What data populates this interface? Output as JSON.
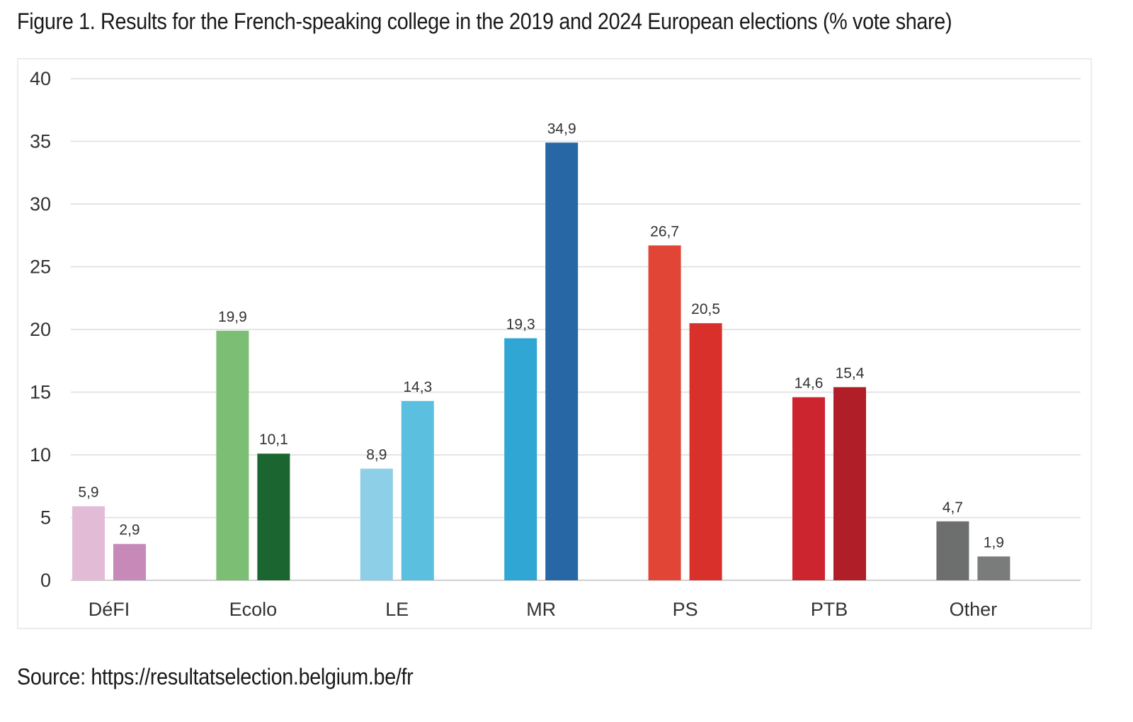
{
  "title": "Figure 1. Results for the French-speaking college in the 2019 and 2024 European elections (% vote share)",
  "source": "Source: https://resultatselection.belgium.be/fr",
  "chart_data": {
    "type": "bar",
    "categories": [
      "DéFI",
      "Ecolo",
      "LE",
      "MR",
      "PS",
      "PTB",
      "Other"
    ],
    "series": [
      {
        "values": [
          5.9,
          19.9,
          8.9,
          19.3,
          26.7,
          14.6,
          4.7
        ],
        "value_labels": [
          "5,9",
          "19,9",
          "8,9",
          "19,3",
          "26,7",
          "14,6",
          "4,7"
        ]
      },
      {
        "values": [
          2.9,
          10.1,
          14.3,
          34.9,
          20.5,
          15.4,
          1.9
        ],
        "value_labels": [
          "2,9",
          "10,1",
          "14,3",
          "34,9",
          "20,5",
          "15,4",
          "1,9"
        ]
      }
    ],
    "colors": [
      [
        "#e2bcd6",
        "#c78ab8"
      ],
      [
        "#7cbf74",
        "#1a6530"
      ],
      [
        "#8ccfe6",
        "#5bc0e0"
      ],
      [
        "#2fa6d4",
        "#2767a6"
      ],
      [
        "#e04535",
        "#d9302b"
      ],
      [
        "#cc2530",
        "#b01f28"
      ],
      [
        "#6d6f6e",
        "#7a7c7b"
      ]
    ],
    "yticks": [
      "0",
      "5",
      "10",
      "15",
      "20",
      "25",
      "30",
      "35",
      "40"
    ],
    "ylim": [
      0,
      40
    ],
    "grid": true,
    "legend": "none"
  }
}
